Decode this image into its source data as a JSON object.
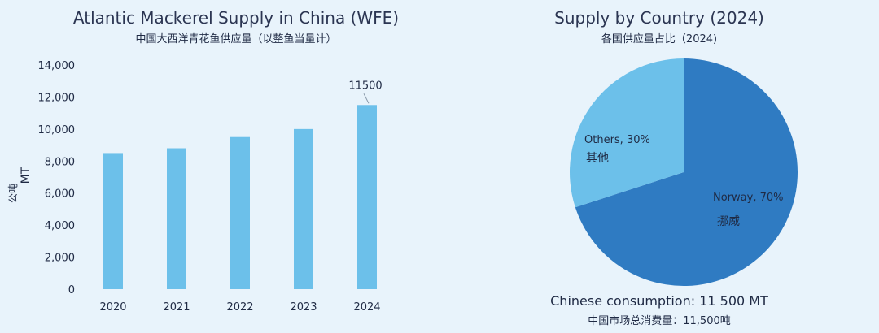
{
  "colors": {
    "background": "#e8f3fb",
    "bar": "#6cc0ea",
    "norway": "#2f7bc2",
    "others": "#6cc0ea",
    "axis_text": "#1f2a44",
    "grid": "#d9e3ec"
  },
  "bar_chart": {
    "title": "Atlantic Mackerel Supply in China (WFE)",
    "subtitle": "中国大西洋青花鱼供应量（以整鱼当量计）",
    "ylabel_en": "MT",
    "ylabel_cn": "公吨",
    "annotation": "11500"
  },
  "pie_chart": {
    "title": "Supply by Country (2024)",
    "subtitle": "各国供应量占比（2024)",
    "norway_label": "Norway, 70%",
    "norway_label_cn": "挪威",
    "others_label": "Others, 30%",
    "others_label_cn": "其他",
    "footer_en": "Chinese consumption: 11 500 MT",
    "footer_cn": "中国市场总消费量：11,500吨"
  },
  "chart_data": [
    {
      "type": "bar",
      "title": "Atlantic Mackerel Supply in China (WFE)",
      "subtitle": "中国大西洋青花鱼供应量（以整鱼当量计）",
      "categories": [
        "2020",
        "2021",
        "2022",
        "2023",
        "2024"
      ],
      "values": [
        8500,
        8800,
        9500,
        10000,
        11500
      ],
      "ylabel": "MT 公吨",
      "ylim": [
        0,
        14000
      ],
      "yticks": [
        "0",
        "2,000",
        "4,000",
        "6,000",
        "8,000",
        "10,000",
        "12,000",
        "14,000"
      ],
      "annotations": [
        {
          "category": "2024",
          "text": "11500"
        }
      ],
      "grid": false,
      "legend": "none"
    },
    {
      "type": "pie",
      "title": "Supply by Country (2024)",
      "subtitle": "各国供应量占比（2024)",
      "slices": [
        {
          "label": "Norway, 70%",
          "label_cn": "挪威",
          "value": 70
        },
        {
          "label": "Others, 30%",
          "label_cn": "其他",
          "value": 30
        }
      ],
      "legend": "none"
    }
  ]
}
